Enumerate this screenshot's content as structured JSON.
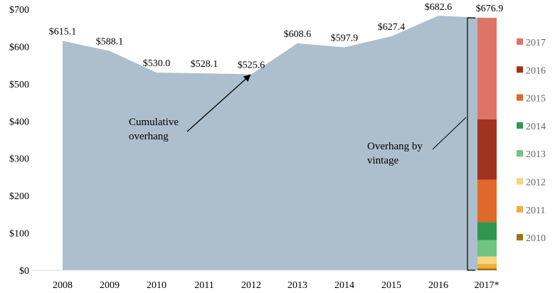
{
  "chart_data": {
    "type": "area",
    "categories": [
      "2008",
      "2009",
      "2010",
      "2011",
      "2012",
      "2013",
      "2014",
      "2015",
      "2016",
      "2017*"
    ],
    "series": [
      {
        "values": [
          615.1,
          588.1,
          530.0,
          528.1,
          525.6,
          608.6,
          597.9,
          627.4,
          682.6,
          676.9
        ],
        "color": "#adbfcc"
      }
    ],
    "data_labels": [
      "$615.1",
      "$588.1",
      "$530.0",
      "$528.1",
      "$525.6",
      "$608.6",
      "$597.9",
      "$627.4",
      "$682.6",
      "$676.9"
    ],
    "ylim": [
      0,
      700
    ],
    "yticks": [
      0,
      100,
      200,
      300,
      400,
      500,
      600,
      700
    ],
    "ytick_labels": [
      "$0",
      "$100",
      "$200",
      "$300",
      "$400",
      "$500",
      "$600",
      "$700"
    ],
    "stacked_bar": {
      "category": "2017*",
      "segments": [
        {
          "name": "2010",
          "value": 5,
          "color": "#a0700f"
        },
        {
          "name": "2011",
          "value": 12,
          "color": "#f2ae3c"
        },
        {
          "name": "2012",
          "value": 20,
          "color": "#f9d282"
        },
        {
          "name": "2013",
          "value": 44,
          "color": "#70c380"
        },
        {
          "name": "2014",
          "value": 48,
          "color": "#2e9650"
        },
        {
          "name": "2015",
          "value": 114,
          "color": "#e0682a"
        },
        {
          "name": "2016",
          "value": 162,
          "color": "#a13220"
        },
        {
          "name": "2017",
          "value": 271.9,
          "color": "#e07368"
        }
      ]
    },
    "legend": {
      "position": "right",
      "items": [
        {
          "label": "2017",
          "color": "#e07368"
        },
        {
          "label": "2016",
          "color": "#a13220"
        },
        {
          "label": "2015",
          "color": "#e0682a"
        },
        {
          "label": "2014",
          "color": "#2e9650"
        },
        {
          "label": "2013",
          "color": "#70c380"
        },
        {
          "label": "2012",
          "color": "#f9d282"
        },
        {
          "label": "2011",
          "color": "#f2ae3c"
        },
        {
          "label": "2010",
          "color": "#a0700f"
        }
      ]
    },
    "annotations": {
      "cumulative": [
        "Cumulative",
        "overhang"
      ],
      "vintage": [
        "Overhang by",
        "vintage"
      ]
    },
    "grid": false
  }
}
